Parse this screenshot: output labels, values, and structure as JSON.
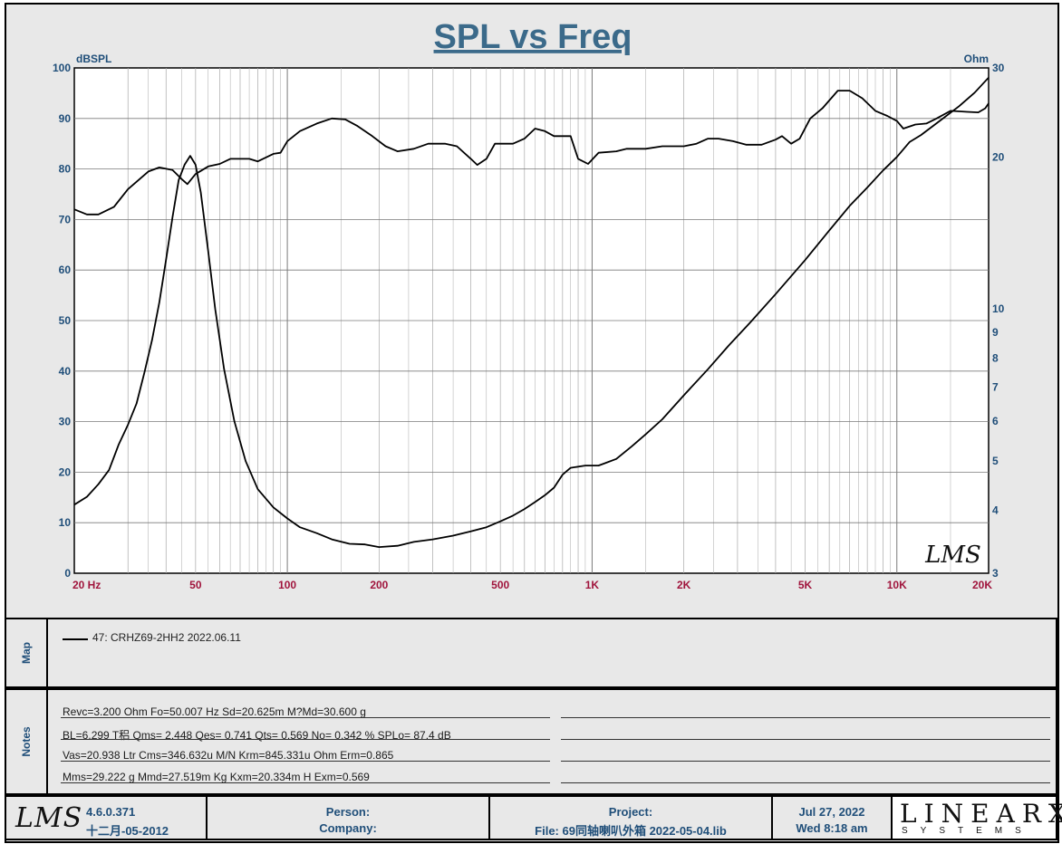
{
  "chart_data": {
    "type": "line",
    "title": "SPL vs Freq",
    "left_axis_label": "dBSPL",
    "right_axis_label": "Ohm",
    "x_scale": "log",
    "xlim": [
      20,
      20000
    ],
    "ylim_left": [
      0,
      100
    ],
    "ylim_right": [
      3,
      30
    ],
    "y_right_scale": "log",
    "x_ticks": [
      {
        "value": 20,
        "label": "20  Hz"
      },
      {
        "value": 50,
        "label": "50"
      },
      {
        "value": 100,
        "label": "100"
      },
      {
        "value": 200,
        "label": "200"
      },
      {
        "value": 500,
        "label": "500"
      },
      {
        "value": 1000,
        "label": "1K"
      },
      {
        "value": 2000,
        "label": "2K"
      },
      {
        "value": 5000,
        "label": "5K"
      },
      {
        "value": 10000,
        "label": "10K"
      },
      {
        "value": 20000,
        "label": "20K"
      }
    ],
    "y_left_ticks": [
      0,
      10,
      20,
      30,
      40,
      50,
      60,
      70,
      80,
      90,
      100
    ],
    "y_right_ticks": [
      3,
      4,
      5,
      6,
      7,
      8,
      9,
      10,
      20,
      30
    ],
    "grid": true,
    "series": [
      {
        "name": "SPL",
        "axis": "left",
        "points": [
          [
            20,
            72
          ],
          [
            22,
            71
          ],
          [
            24,
            71
          ],
          [
            27,
            72.5
          ],
          [
            30,
            76
          ],
          [
            35,
            79.5
          ],
          [
            38,
            80.3
          ],
          [
            42,
            79.8
          ],
          [
            45,
            78
          ],
          [
            47,
            77
          ],
          [
            50,
            79
          ],
          [
            55,
            80.5
          ],
          [
            60,
            81
          ],
          [
            65,
            82
          ],
          [
            75,
            82
          ],
          [
            80,
            81.5
          ],
          [
            90,
            83
          ],
          [
            95,
            83.2
          ],
          [
            100,
            85.5
          ],
          [
            110,
            87.5
          ],
          [
            125,
            89
          ],
          [
            140,
            90
          ],
          [
            155,
            89.8
          ],
          [
            170,
            88.5
          ],
          [
            190,
            86.5
          ],
          [
            210,
            84.5
          ],
          [
            230,
            83.5
          ],
          [
            260,
            84
          ],
          [
            290,
            85
          ],
          [
            330,
            85
          ],
          [
            360,
            84.5
          ],
          [
            400,
            82
          ],
          [
            420,
            80.8
          ],
          [
            450,
            82
          ],
          [
            480,
            85
          ],
          [
            550,
            85
          ],
          [
            600,
            86
          ],
          [
            650,
            88
          ],
          [
            700,
            87.5
          ],
          [
            750,
            86.5
          ],
          [
            850,
            86.5
          ],
          [
            900,
            82
          ],
          [
            970,
            81
          ],
          [
            1050,
            83.2
          ],
          [
            1200,
            83.5
          ],
          [
            1300,
            84
          ],
          [
            1500,
            84
          ],
          [
            1700,
            84.5
          ],
          [
            2000,
            84.5
          ],
          [
            2200,
            85
          ],
          [
            2400,
            86
          ],
          [
            2600,
            86
          ],
          [
            2900,
            85.5
          ],
          [
            3200,
            84.8
          ],
          [
            3600,
            84.8
          ],
          [
            4000,
            85.8
          ],
          [
            4200,
            86.5
          ],
          [
            4500,
            85
          ],
          [
            4800,
            86
          ],
          [
            5200,
            90
          ],
          [
            5700,
            92
          ],
          [
            6400,
            95.5
          ],
          [
            7000,
            95.5
          ],
          [
            7700,
            94
          ],
          [
            8500,
            91.5
          ],
          [
            9300,
            90.5
          ],
          [
            10000,
            89.5
          ],
          [
            10500,
            88
          ],
          [
            11500,
            88.8
          ],
          [
            12500,
            89
          ],
          [
            13500,
            90
          ],
          [
            15000,
            91.5
          ],
          [
            17000,
            91.3
          ],
          [
            18500,
            91.2
          ],
          [
            19500,
            92
          ],
          [
            20000,
            93
          ]
        ]
      },
      {
        "name": "Impedance",
        "axis": "right",
        "points": [
          [
            20,
            4.1
          ],
          [
            22,
            4.25
          ],
          [
            24,
            4.5
          ],
          [
            26,
            4.8
          ],
          [
            28,
            5.4
          ],
          [
            30,
            5.9
          ],
          [
            32,
            6.5
          ],
          [
            34,
            7.5
          ],
          [
            36,
            8.7
          ],
          [
            38,
            10.3
          ],
          [
            40,
            12.5
          ],
          [
            42,
            15.2
          ],
          [
            44,
            18.0
          ],
          [
            46,
            19.3
          ],
          [
            48,
            20.1
          ],
          [
            50,
            19.3
          ],
          [
            52,
            17.0
          ],
          [
            55,
            13.0
          ],
          [
            58,
            10.0
          ],
          [
            62,
            7.6
          ],
          [
            67,
            6.0
          ],
          [
            73,
            5.0
          ],
          [
            80,
            4.4
          ],
          [
            90,
            4.05
          ],
          [
            100,
            3.85
          ],
          [
            110,
            3.7
          ],
          [
            125,
            3.6
          ],
          [
            140,
            3.5
          ],
          [
            160,
            3.43
          ],
          [
            180,
            3.42
          ],
          [
            200,
            3.38
          ],
          [
            230,
            3.4
          ],
          [
            260,
            3.46
          ],
          [
            300,
            3.5
          ],
          [
            350,
            3.56
          ],
          [
            400,
            3.63
          ],
          [
            450,
            3.7
          ],
          [
            500,
            3.8
          ],
          [
            550,
            3.9
          ],
          [
            600,
            4.02
          ],
          [
            650,
            4.15
          ],
          [
            700,
            4.28
          ],
          [
            750,
            4.43
          ],
          [
            800,
            4.7
          ],
          [
            850,
            4.85
          ],
          [
            950,
            4.9
          ],
          [
            1000,
            4.9
          ],
          [
            1050,
            4.9
          ],
          [
            1100,
            4.95
          ],
          [
            1200,
            5.05
          ],
          [
            1350,
            5.35
          ],
          [
            1500,
            5.65
          ],
          [
            1700,
            6.05
          ],
          [
            2000,
            6.75
          ],
          [
            2400,
            7.6
          ],
          [
            2800,
            8.45
          ],
          [
            3300,
            9.4
          ],
          [
            4000,
            10.7
          ],
          [
            5000,
            12.5
          ],
          [
            6000,
            14.3
          ],
          [
            7000,
            16.0
          ],
          [
            8000,
            17.4
          ],
          [
            9000,
            18.8
          ],
          [
            10000,
            20.0
          ],
          [
            11000,
            21.4
          ],
          [
            12000,
            22.1
          ],
          [
            14000,
            23.7
          ],
          [
            16000,
            25.2
          ],
          [
            18000,
            26.8
          ],
          [
            20000,
            28.7
          ]
        ]
      }
    ]
  },
  "map": {
    "label": "Map",
    "legend": "47: CRHZ69-2HH2  2022.06.11"
  },
  "notes": {
    "label": "Notes",
    "lines": [
      "Revc=3.200 Ohm  Fo=50.007 Hz  Sd=20.625m M?Md=30.600 g",
      "BL=6.299 T稆  Qms= 2.448  Qes= 0.741  Qts= 0.569  No= 0.342 %  SPLo= 87.4 dB",
      "Vas=20.938 Ltr  Cms=346.632u M/N  Krm=845.331u Ohm  Erm=0.865",
      "Mms=29.222 g  Mmd=27.519m Kg  Kxm=20.334m H  Exm=0.569"
    ]
  },
  "footer": {
    "logo": "LMS",
    "version": "4.6.0.371",
    "build_date": "十二月-05-2012",
    "person_label": "Person:",
    "company_label": "Company:",
    "project_label": "Project:",
    "file_label": "File: 69同轴喇叭外箱 2022-05-04.lib",
    "date": "Jul 27, 2022",
    "time": "Wed  8:18 am",
    "brand": "LINEARX",
    "brand_sub": "SYSTEMS"
  },
  "watermark": "LMS",
  "colors": {
    "title": "#3b6a8a",
    "axis_text": "#1f4e79",
    "x_tick_text": "#a0143c",
    "curve": "#000000",
    "grid_major": "#7a7a7a",
    "grid_minor": "#a8a8a8",
    "plot_bg": "#ffffff",
    "panel_bg": "#e8e8e8"
  }
}
